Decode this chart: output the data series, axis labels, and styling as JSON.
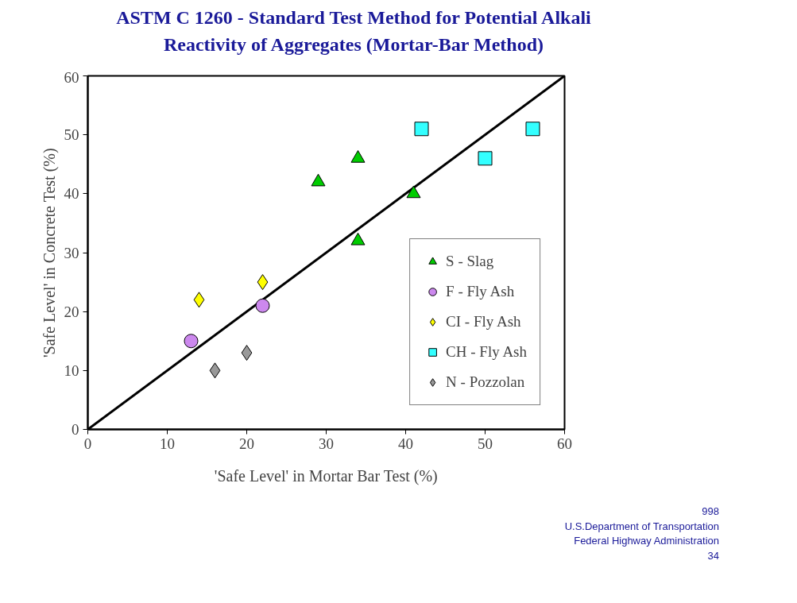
{
  "chart_data": {
    "type": "scatter",
    "title": "ASTM C 1260 - Standard Test Method for Potential Alkali Reactivity of Aggregates (Mortar-Bar Method)",
    "xlabel": "'Safe Level' in Mortar Bar Test (%)",
    "ylabel": "'Safe Level' in Concrete Test (%)",
    "xlim": [
      0,
      60
    ],
    "ylim": [
      0,
      60
    ],
    "xticks": [
      0,
      10,
      20,
      30,
      40,
      50,
      60
    ],
    "yticks": [
      0,
      10,
      20,
      30,
      40,
      50,
      60
    ],
    "grid": false,
    "legend": "bottom right",
    "annotations": [
      "998",
      "U.S.Department of Transportation",
      "Federal Highway Administration",
      "34"
    ],
    "series": [
      {
        "type": "line",
        "color": "#000000",
        "x": [
          0,
          60
        ],
        "values": [
          0,
          60
        ],
        "marker": "none",
        "line_style": "solid"
      },
      {
        "name": "S - Slag",
        "color": "#00cc00",
        "marker": "triangle",
        "x": [
          29,
          34,
          34,
          41
        ],
        "values": [
          42,
          46,
          32,
          40
        ]
      },
      {
        "name": "F - Fly Ash",
        "color": "#cc88ee",
        "marker": "circle",
        "x": [
          13,
          22
        ],
        "values": [
          15,
          21
        ]
      },
      {
        "name": "CI - Fly Ash",
        "color": "#ffff00",
        "marker": "diamond",
        "x": [
          14,
          22
        ],
        "values": [
          22,
          25
        ]
      },
      {
        "name": "CH - Fly Ash",
        "color": "#33ffff",
        "marker": "square",
        "x": [
          42,
          50,
          56
        ],
        "values": [
          51,
          46,
          51
        ]
      },
      {
        "name": "N - Pozzolan",
        "color": "#999999",
        "marker": "diamond",
        "x": [
          16,
          20
        ],
        "values": [
          10,
          13
        ]
      }
    ]
  }
}
